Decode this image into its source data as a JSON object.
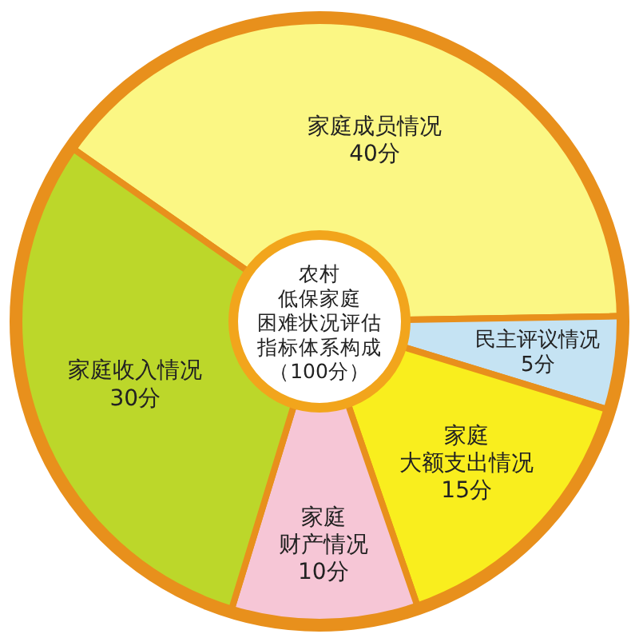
{
  "chart_data": {
    "type": "donut",
    "title": "农村低保家庭困难状况评估指标体系构成（100分）",
    "categories": [
      "家庭成员情况",
      "民主评议情况",
      "家庭大额支出情况",
      "家庭财产情况",
      "家庭收入情况"
    ],
    "values": [
      40,
      5,
      15,
      10,
      30
    ],
    "value_labels": [
      "40分",
      "5分",
      "15分",
      "10分",
      "30分"
    ],
    "colors": [
      "#fbf784",
      "#c5e3f3",
      "#f9ee1e",
      "#f6c6d6",
      "#bcd72a"
    ],
    "legend": false
  }
}
